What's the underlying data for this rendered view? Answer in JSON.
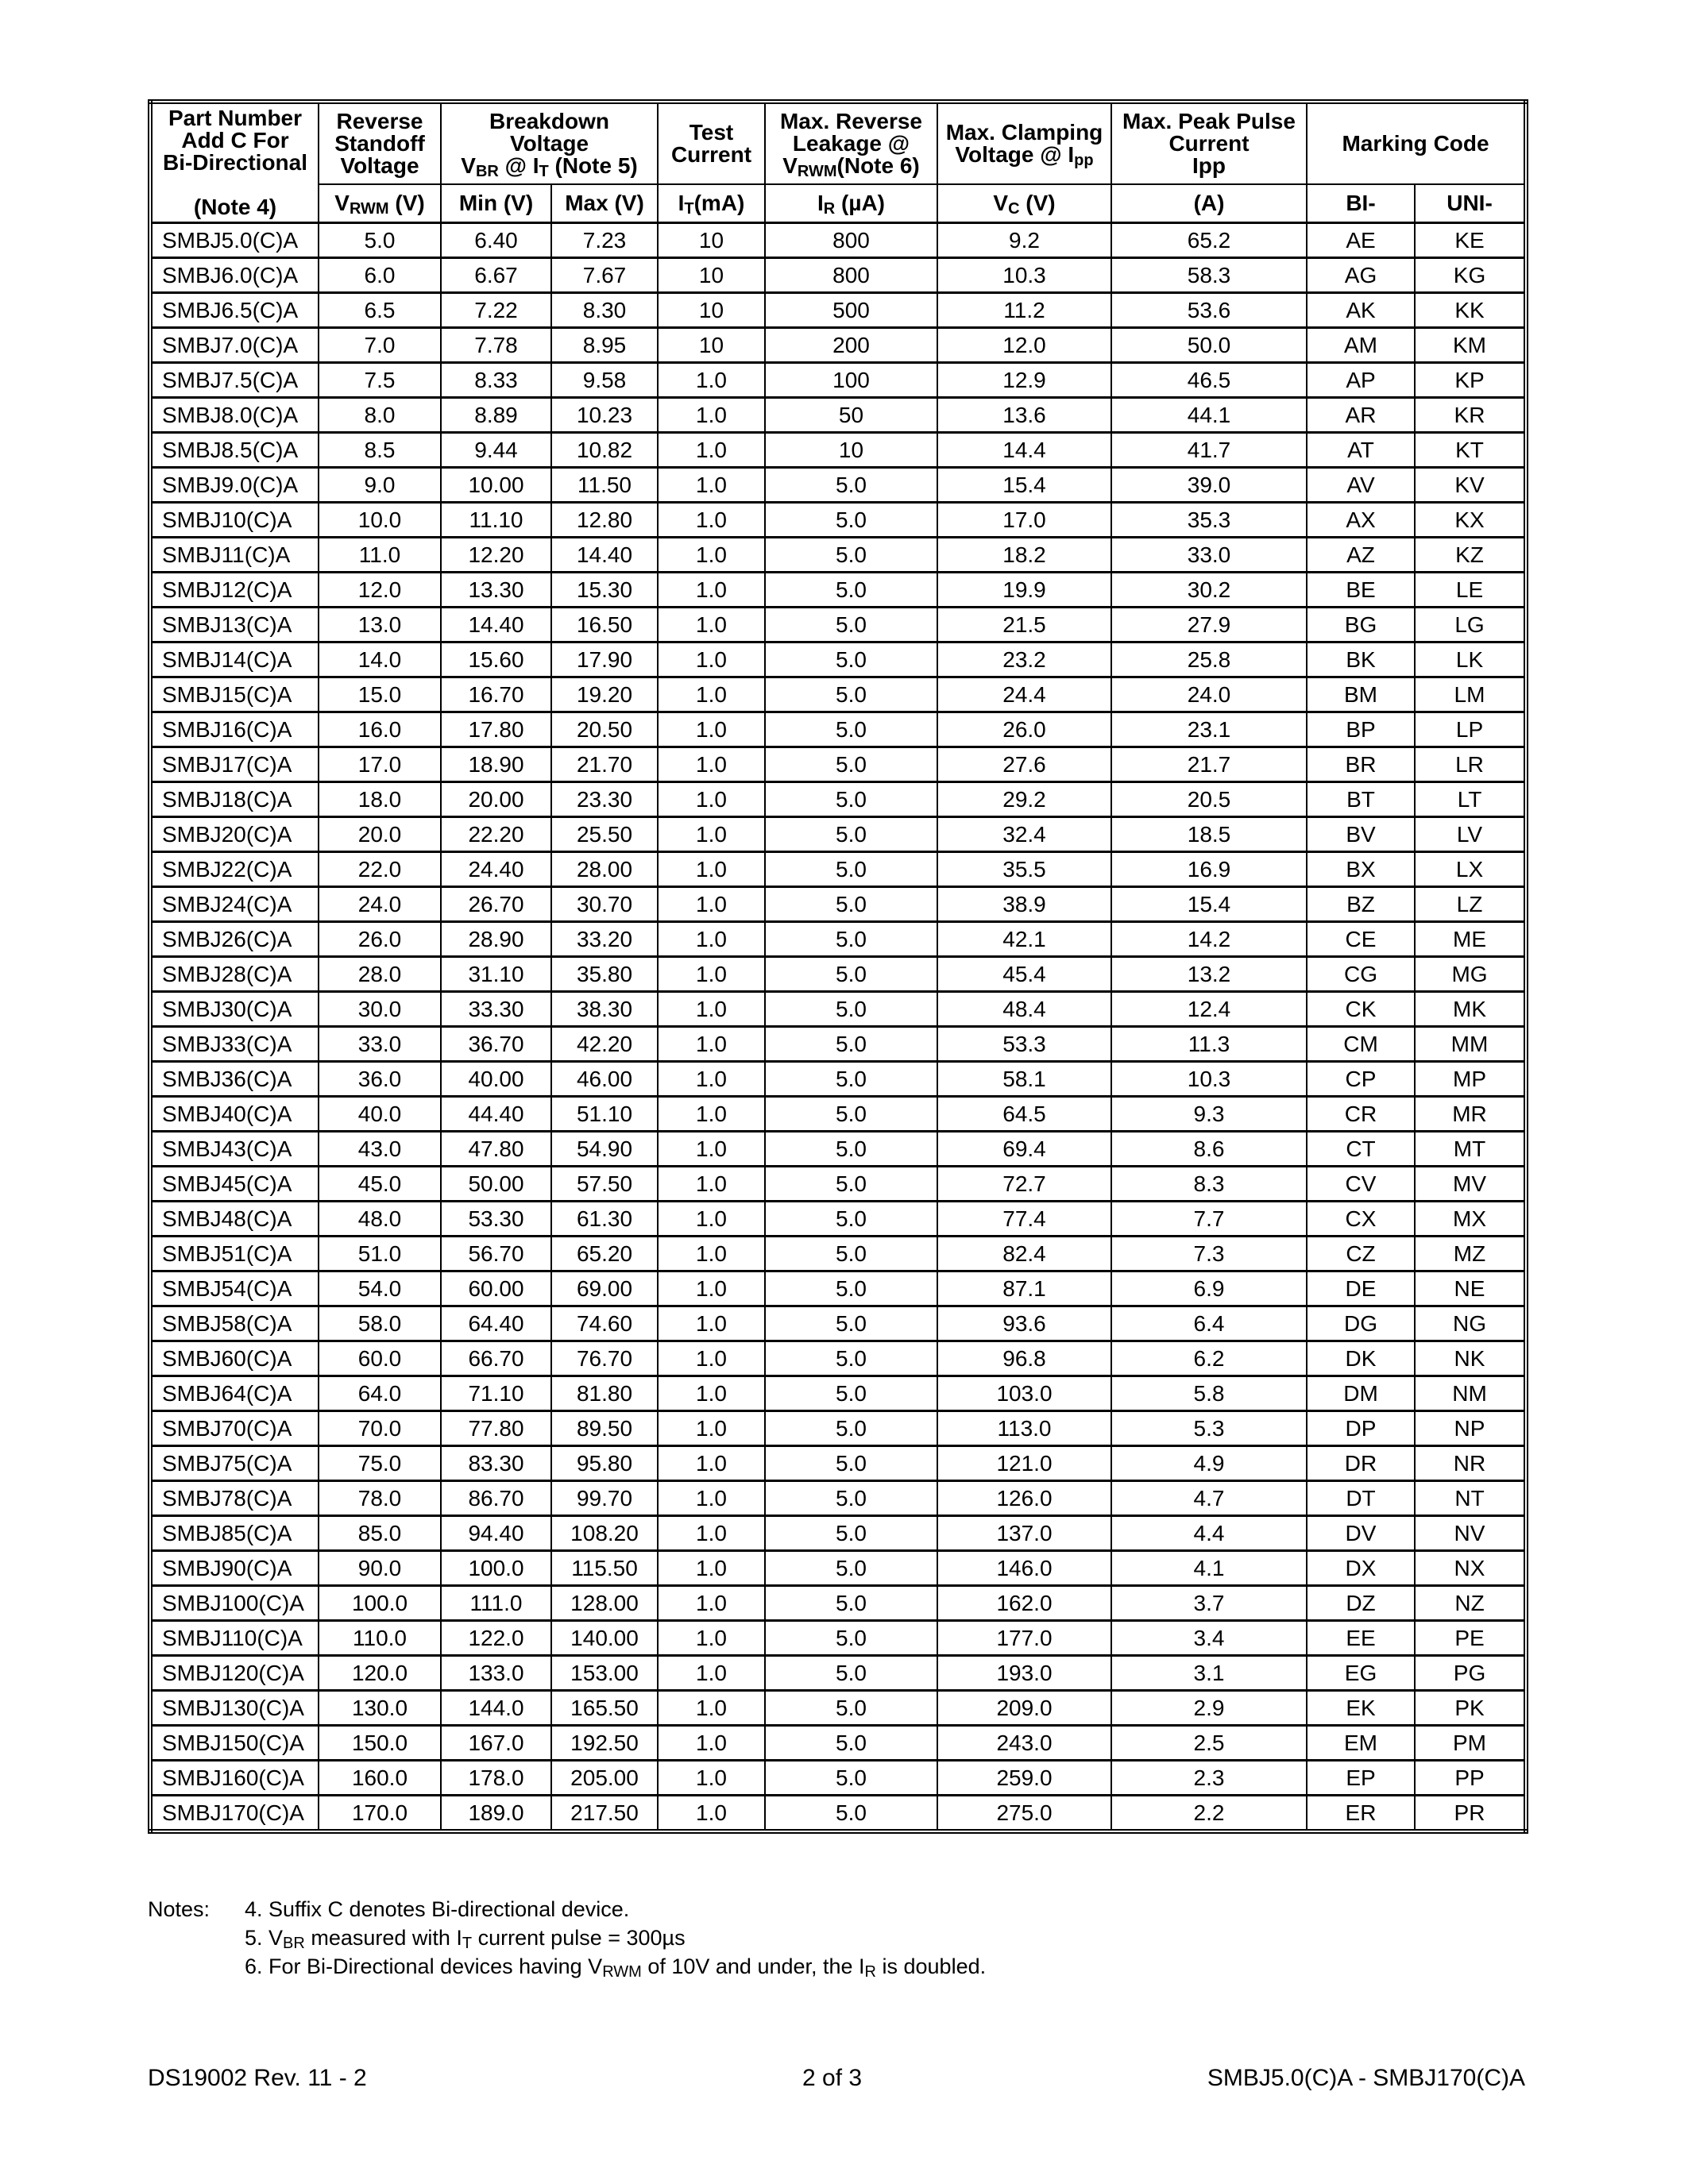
{
  "header": {
    "part_number": [
      "Part Number",
      "Add C For",
      "Bi-Directional",
      "(Note 4)"
    ],
    "reverse_standoff": [
      "Reverse",
      "Standoff",
      "Voltage"
    ],
    "breakdown": [
      "Breakdown",
      "Voltage"
    ],
    "breakdown_cond": {
      "v": "V",
      "v_sub": "BR",
      "at": " @ I",
      "i_sub": "T",
      "note": " (Note 5)"
    },
    "test_current": [
      "Test",
      "Current"
    ],
    "max_leakage": [
      "Max. Reverse",
      "Leakage @"
    ],
    "max_leakage_cond": {
      "v": "V",
      "v_sub": "RWM",
      "note": "(Note 6)"
    },
    "max_clamping": [
      "Max. Clamping"
    ],
    "max_clamping_cond": {
      "text": "Voltage @ I",
      "sub": "pp"
    },
    "max_peak": [
      "Max. Peak Pulse",
      "Current",
      "Ipp"
    ],
    "marking_code": "Marking Code",
    "units": {
      "vrwm": {
        "v": "V",
        "sub": "RWM",
        "unit": " (V)"
      },
      "min": "Min (V)",
      "max": "Max (V)",
      "it": {
        "v": "I",
        "sub": "T",
        "unit": "(mA)"
      },
      "ir": {
        "v": "I",
        "sub": "R",
        "unit": " (µA)"
      },
      "vc": {
        "v": "V",
        "sub": "C",
        "unit": " (V)"
      },
      "ipp": "(A)",
      "bi": "BI-",
      "uni": "UNI-"
    }
  },
  "rows": [
    [
      "SMBJ5.0(C)A",
      "5.0",
      "6.40",
      "7.23",
      "10",
      "800",
      "9.2",
      "65.2",
      "AE",
      "KE"
    ],
    [
      "SMBJ6.0(C)A",
      "6.0",
      "6.67",
      "7.67",
      "10",
      "800",
      "10.3",
      "58.3",
      "AG",
      "KG"
    ],
    [
      "SMBJ6.5(C)A",
      "6.5",
      "7.22",
      "8.30",
      "10",
      "500",
      "11.2",
      "53.6",
      "AK",
      "KK"
    ],
    [
      "SMBJ7.0(C)A",
      "7.0",
      "7.78",
      "8.95",
      "10",
      "200",
      "12.0",
      "50.0",
      "AM",
      "KM"
    ],
    [
      "SMBJ7.5(C)A",
      "7.5",
      "8.33",
      "9.58",
      "1.0",
      "100",
      "12.9",
      "46.5",
      "AP",
      "KP"
    ],
    [
      "SMBJ8.0(C)A",
      "8.0",
      "8.89",
      "10.23",
      "1.0",
      "50",
      "13.6",
      "44.1",
      "AR",
      "KR"
    ],
    [
      "SMBJ8.5(C)A",
      "8.5",
      "9.44",
      "10.82",
      "1.0",
      "10",
      "14.4",
      "41.7",
      "AT",
      "KT"
    ],
    [
      "SMBJ9.0(C)A",
      "9.0",
      "10.00",
      "11.50",
      "1.0",
      "5.0",
      "15.4",
      "39.0",
      "AV",
      "KV"
    ],
    [
      "SMBJ10(C)A",
      "10.0",
      "11.10",
      "12.80",
      "1.0",
      "5.0",
      "17.0",
      "35.3",
      "AX",
      "KX"
    ],
    [
      "SMBJ11(C)A",
      "11.0",
      "12.20",
      "14.40",
      "1.0",
      "5.0",
      "18.2",
      "33.0",
      "AZ",
      "KZ"
    ],
    [
      "SMBJ12(C)A",
      "12.0",
      "13.30",
      "15.30",
      "1.0",
      "5.0",
      "19.9",
      "30.2",
      "BE",
      "LE"
    ],
    [
      "SMBJ13(C)A",
      "13.0",
      "14.40",
      "16.50",
      "1.0",
      "5.0",
      "21.5",
      "27.9",
      "BG",
      "LG"
    ],
    [
      "SMBJ14(C)A",
      "14.0",
      "15.60",
      "17.90",
      "1.0",
      "5.0",
      "23.2",
      "25.8",
      "BK",
      "LK"
    ],
    [
      "SMBJ15(C)A",
      "15.0",
      "16.70",
      "19.20",
      "1.0",
      "5.0",
      "24.4",
      "24.0",
      "BM",
      "LM"
    ],
    [
      "SMBJ16(C)A",
      "16.0",
      "17.80",
      "20.50",
      "1.0",
      "5.0",
      "26.0",
      "23.1",
      "BP",
      "LP"
    ],
    [
      "SMBJ17(C)A",
      "17.0",
      "18.90",
      "21.70",
      "1.0",
      "5.0",
      "27.6",
      "21.7",
      "BR",
      "LR"
    ],
    [
      "SMBJ18(C)A",
      "18.0",
      "20.00",
      "23.30",
      "1.0",
      "5.0",
      "29.2",
      "20.5",
      "BT",
      "LT"
    ],
    [
      "SMBJ20(C)A",
      "20.0",
      "22.20",
      "25.50",
      "1.0",
      "5.0",
      "32.4",
      "18.5",
      "BV",
      "LV"
    ],
    [
      "SMBJ22(C)A",
      "22.0",
      "24.40",
      "28.00",
      "1.0",
      "5.0",
      "35.5",
      "16.9",
      "BX",
      "LX"
    ],
    [
      "SMBJ24(C)A",
      "24.0",
      "26.70",
      "30.70",
      "1.0",
      "5.0",
      "38.9",
      "15.4",
      "BZ",
      "LZ"
    ],
    [
      "SMBJ26(C)A",
      "26.0",
      "28.90",
      "33.20",
      "1.0",
      "5.0",
      "42.1",
      "14.2",
      "CE",
      "ME"
    ],
    [
      "SMBJ28(C)A",
      "28.0",
      "31.10",
      "35.80",
      "1.0",
      "5.0",
      "45.4",
      "13.2",
      "CG",
      "MG"
    ],
    [
      "SMBJ30(C)A",
      "30.0",
      "33.30",
      "38.30",
      "1.0",
      "5.0",
      "48.4",
      "12.4",
      "CK",
      "MK"
    ],
    [
      "SMBJ33(C)A",
      "33.0",
      "36.70",
      "42.20",
      "1.0",
      "5.0",
      "53.3",
      "11.3",
      "CM",
      "MM"
    ],
    [
      "SMBJ36(C)A",
      "36.0",
      "40.00",
      "46.00",
      "1.0",
      "5.0",
      "58.1",
      "10.3",
      "CP",
      "MP"
    ],
    [
      "SMBJ40(C)A",
      "40.0",
      "44.40",
      "51.10",
      "1.0",
      "5.0",
      "64.5",
      "9.3",
      "CR",
      "MR"
    ],
    [
      "SMBJ43(C)A",
      "43.0",
      "47.80",
      "54.90",
      "1.0",
      "5.0",
      "69.4",
      "8.6",
      "CT",
      "MT"
    ],
    [
      "SMBJ45(C)A",
      "45.0",
      "50.00",
      "57.50",
      "1.0",
      "5.0",
      "72.7",
      "8.3",
      "CV",
      "MV"
    ],
    [
      "SMBJ48(C)A",
      "48.0",
      "53.30",
      "61.30",
      "1.0",
      "5.0",
      "77.4",
      "7.7",
      "CX",
      "MX"
    ],
    [
      "SMBJ51(C)A",
      "51.0",
      "56.70",
      "65.20",
      "1.0",
      "5.0",
      "82.4",
      "7.3",
      "CZ",
      "MZ"
    ],
    [
      "SMBJ54(C)A",
      "54.0",
      "60.00",
      "69.00",
      "1.0",
      "5.0",
      "87.1",
      "6.9",
      "DE",
      "NE"
    ],
    [
      "SMBJ58(C)A",
      "58.0",
      "64.40",
      "74.60",
      "1.0",
      "5.0",
      "93.6",
      "6.4",
      "DG",
      "NG"
    ],
    [
      "SMBJ60(C)A",
      "60.0",
      "66.70",
      "76.70",
      "1.0",
      "5.0",
      "96.8",
      "6.2",
      "DK",
      "NK"
    ],
    [
      "SMBJ64(C)A",
      "64.0",
      "71.10",
      "81.80",
      "1.0",
      "5.0",
      "103.0",
      "5.8",
      "DM",
      "NM"
    ],
    [
      "SMBJ70(C)A",
      "70.0",
      "77.80",
      "89.50",
      "1.0",
      "5.0",
      "113.0",
      "5.3",
      "DP",
      "NP"
    ],
    [
      "SMBJ75(C)A",
      "75.0",
      "83.30",
      "95.80",
      "1.0",
      "5.0",
      "121.0",
      "4.9",
      "DR",
      "NR"
    ],
    [
      "SMBJ78(C)A",
      "78.0",
      "86.70",
      "99.70",
      "1.0",
      "5.0",
      "126.0",
      "4.7",
      "DT",
      "NT"
    ],
    [
      "SMBJ85(C)A",
      "85.0",
      "94.40",
      "108.20",
      "1.0",
      "5.0",
      "137.0",
      "4.4",
      "DV",
      "NV"
    ],
    [
      "SMBJ90(C)A",
      "90.0",
      "100.0",
      "115.50",
      "1.0",
      "5.0",
      "146.0",
      "4.1",
      "DX",
      "NX"
    ],
    [
      "SMBJ100(C)A",
      "100.0",
      "111.0",
      "128.00",
      "1.0",
      "5.0",
      "162.0",
      "3.7",
      "DZ",
      "NZ"
    ],
    [
      "SMBJ110(C)A",
      "110.0",
      "122.0",
      "140.00",
      "1.0",
      "5.0",
      "177.0",
      "3.4",
      "EE",
      "PE"
    ],
    [
      "SMBJ120(C)A",
      "120.0",
      "133.0",
      "153.00",
      "1.0",
      "5.0",
      "193.0",
      "3.1",
      "EG",
      "PG"
    ],
    [
      "SMBJ130(C)A",
      "130.0",
      "144.0",
      "165.50",
      "1.0",
      "5.0",
      "209.0",
      "2.9",
      "EK",
      "PK"
    ],
    [
      "SMBJ150(C)A",
      "150.0",
      "167.0",
      "192.50",
      "1.0",
      "5.0",
      "243.0",
      "2.5",
      "EM",
      "PM"
    ],
    [
      "SMBJ160(C)A",
      "160.0",
      "178.0",
      "205.00",
      "1.0",
      "5.0",
      "259.0",
      "2.3",
      "EP",
      "PP"
    ],
    [
      "SMBJ170(C)A",
      "170.0",
      "189.0",
      "217.50",
      "1.0",
      "5.0",
      "275.0",
      "2.2",
      "ER",
      "PR"
    ]
  ],
  "notes": {
    "label": "Notes:",
    "note4": "4. Suffix C denotes Bi-directional device.",
    "note5": {
      "pre": "5. V",
      "sub1": "BR",
      "mid": " measured with I",
      "sub2": "T",
      "post": " current pulse = 300µs"
    },
    "note6": {
      "pre": "6. For Bi-Directional devices having V",
      "sub1": "RWM",
      "mid": " of 10V and under, the I",
      "sub2": "R",
      "post": " is doubled."
    }
  },
  "footer": {
    "doc_id": "DS19002 Rev. 11 - 2",
    "page": "2 of 3",
    "part_range": "SMBJ5.0(C)A - SMBJ170(C)A"
  }
}
